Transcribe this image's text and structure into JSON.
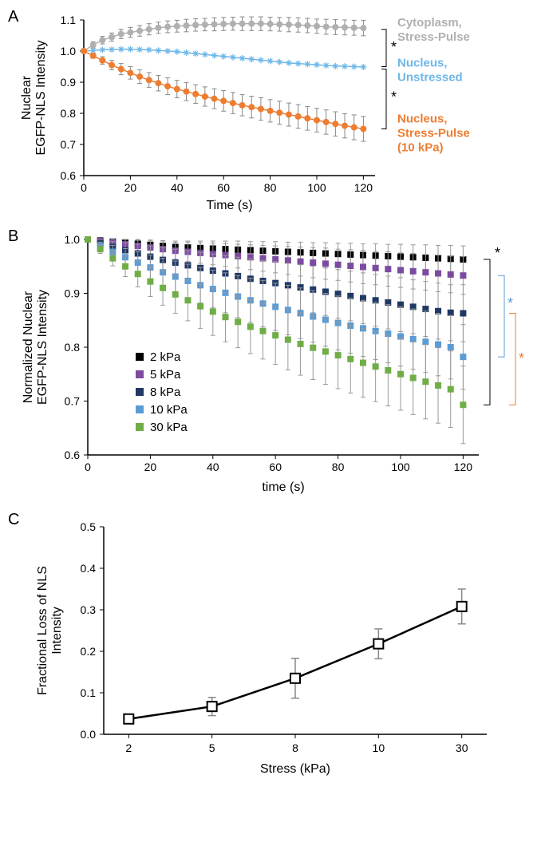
{
  "chartA": {
    "type": "scatter-line",
    "panel_label": "A",
    "xlabel": "Time (s)",
    "ylabel": "Nuclear\nEGFP-NLS Intensity",
    "xlim": [
      0,
      125
    ],
    "ylim": [
      0.6,
      1.1
    ],
    "xticks": [
      0,
      20,
      40,
      60,
      80,
      100,
      120
    ],
    "yticks": [
      0.6,
      0.7,
      0.8,
      0.9,
      1.0,
      1.1
    ],
    "label_fontsize": 16,
    "tick_fontsize": 14,
    "background_color": "#ffffff",
    "series": [
      {
        "name": "Cytoplasm, Stress-Pulse",
        "color": "#b0b0b0",
        "label_color": "#b0b0b0",
        "marker": "circle",
        "x": [
          0,
          4,
          8,
          12,
          16,
          20,
          24,
          28,
          32,
          36,
          40,
          44,
          48,
          52,
          56,
          60,
          64,
          68,
          72,
          76,
          80,
          84,
          88,
          92,
          96,
          100,
          104,
          108,
          112,
          116,
          120
        ],
        "y": [
          1.0,
          1.02,
          1.035,
          1.045,
          1.055,
          1.06,
          1.065,
          1.07,
          1.075,
          1.078,
          1.08,
          1.082,
          1.084,
          1.085,
          1.086,
          1.087,
          1.088,
          1.088,
          1.088,
          1.088,
          1.087,
          1.086,
          1.085,
          1.084,
          1.082,
          1.08,
          1.078,
          1.077,
          1.076,
          1.075,
          1.074
        ],
        "err": [
          0,
          0.01,
          0.012,
          0.013,
          0.015,
          0.016,
          0.017,
          0.018,
          0.018,
          0.019,
          0.019,
          0.02,
          0.02,
          0.02,
          0.021,
          0.021,
          0.021,
          0.022,
          0.022,
          0.022,
          0.022,
          0.022,
          0.023,
          0.023,
          0.023,
          0.023,
          0.024,
          0.024,
          0.024,
          0.024,
          0.025
        ]
      },
      {
        "name": "Nucleus, Unstressed",
        "color": "#6db7e8",
        "label_color": "#6db7e8",
        "marker": "asterisk",
        "x": [
          0,
          4,
          8,
          12,
          16,
          20,
          24,
          28,
          32,
          36,
          40,
          44,
          48,
          52,
          56,
          60,
          64,
          68,
          72,
          76,
          80,
          84,
          88,
          92,
          96,
          100,
          104,
          108,
          112,
          116,
          120
        ],
        "y": [
          1.0,
          1.002,
          1.004,
          1.005,
          1.006,
          1.006,
          1.005,
          1.004,
          1.002,
          1.0,
          0.998,
          0.995,
          0.992,
          0.989,
          0.986,
          0.983,
          0.98,
          0.977,
          0.974,
          0.971,
          0.968,
          0.965,
          0.962,
          0.96,
          0.958,
          0.956,
          0.954,
          0.952,
          0.951,
          0.95,
          0.949
        ],
        "err": [
          0,
          0,
          0,
          0,
          0,
          0,
          0,
          0,
          0,
          0,
          0,
          0,
          0,
          0,
          0,
          0,
          0,
          0,
          0,
          0,
          0,
          0,
          0,
          0,
          0,
          0,
          0,
          0,
          0,
          0,
          0
        ]
      },
      {
        "name": "Nucleus, Stress-Pulse (10 kPa)",
        "color": "#ed7d31",
        "label_color": "#ed7d31",
        "marker": "circle",
        "x": [
          0,
          4,
          8,
          12,
          16,
          20,
          24,
          28,
          32,
          36,
          40,
          44,
          48,
          52,
          56,
          60,
          64,
          68,
          72,
          76,
          80,
          84,
          88,
          92,
          96,
          100,
          104,
          108,
          112,
          116,
          120
        ],
        "y": [
          1.0,
          0.985,
          0.97,
          0.955,
          0.942,
          0.93,
          0.918,
          0.907,
          0.897,
          0.887,
          0.878,
          0.87,
          0.862,
          0.854,
          0.847,
          0.84,
          0.833,
          0.826,
          0.82,
          0.814,
          0.808,
          0.802,
          0.796,
          0.79,
          0.784,
          0.778,
          0.772,
          0.766,
          0.76,
          0.755,
          0.75
        ],
        "err": [
          0,
          0.008,
          0.012,
          0.015,
          0.018,
          0.02,
          0.022,
          0.024,
          0.025,
          0.027,
          0.028,
          0.029,
          0.03,
          0.031,
          0.032,
          0.033,
          0.034,
          0.034,
          0.035,
          0.036,
          0.036,
          0.037,
          0.037,
          0.038,
          0.038,
          0.038,
          0.039,
          0.039,
          0.039,
          0.04,
          0.04
        ]
      }
    ],
    "sig_marks": [
      "*",
      "*"
    ]
  },
  "chartB": {
    "type": "scatter-line",
    "panel_label": "B",
    "xlabel": "time (s)",
    "ylabel": "Normalized Nuclear\nEGFP-NLS Intensity",
    "xlim": [
      0,
      125
    ],
    "ylim": [
      0.6,
      1.0
    ],
    "xticks": [
      0,
      20,
      40,
      60,
      80,
      100,
      120
    ],
    "yticks": [
      0.6,
      0.7,
      0.8,
      0.9,
      1.0
    ],
    "label_fontsize": 16,
    "tick_fontsize": 14,
    "background_color": "#ffffff",
    "legend_pos": "lower-left",
    "series": [
      {
        "name": "2 kPa",
        "color": "#000000",
        "marker": "square",
        "x": [
          0,
          4,
          8,
          12,
          16,
          20,
          24,
          28,
          32,
          36,
          40,
          44,
          48,
          52,
          56,
          60,
          64,
          68,
          72,
          76,
          80,
          84,
          88,
          92,
          96,
          100,
          104,
          108,
          112,
          116,
          120
        ],
        "y": [
          1.0,
          0.998,
          0.996,
          0.994,
          0.992,
          0.99,
          0.988,
          0.986,
          0.985,
          0.984,
          0.983,
          0.982,
          0.981,
          0.98,
          0.979,
          0.978,
          0.977,
          0.976,
          0.975,
          0.974,
          0.973,
          0.972,
          0.971,
          0.97,
          0.969,
          0.968,
          0.967,
          0.966,
          0.965,
          0.964,
          0.963
        ],
        "err": [
          0,
          0.003,
          0.005,
          0.006,
          0.008,
          0.009,
          0.01,
          0.011,
          0.012,
          0.013,
          0.014,
          0.015,
          0.016,
          0.016,
          0.017,
          0.018,
          0.018,
          0.019,
          0.019,
          0.02,
          0.02,
          0.021,
          0.021,
          0.022,
          0.022,
          0.023,
          0.023,
          0.024,
          0.024,
          0.025,
          0.025
        ]
      },
      {
        "name": "5 kPa",
        "color": "#7c4ba0",
        "marker": "square",
        "x": [
          0,
          4,
          8,
          12,
          16,
          20,
          24,
          28,
          32,
          36,
          40,
          44,
          48,
          52,
          56,
          60,
          64,
          68,
          72,
          76,
          80,
          84,
          88,
          92,
          96,
          100,
          104,
          108,
          112,
          116,
          120
        ],
        "y": [
          1.0,
          0.997,
          0.994,
          0.991,
          0.988,
          0.985,
          0.982,
          0.979,
          0.977,
          0.975,
          0.973,
          0.971,
          0.969,
          0.967,
          0.965,
          0.963,
          0.961,
          0.959,
          0.957,
          0.955,
          0.953,
          0.951,
          0.949,
          0.947,
          0.945,
          0.943,
          0.941,
          0.939,
          0.937,
          0.935,
          0.933
        ],
        "err": [
          0,
          0.004,
          0.007,
          0.009,
          0.011,
          0.013,
          0.015,
          0.016,
          0.018,
          0.019,
          0.02,
          0.021,
          0.022,
          0.023,
          0.024,
          0.025,
          0.026,
          0.027,
          0.028,
          0.029,
          0.029,
          0.03,
          0.031,
          0.031,
          0.032,
          0.032,
          0.033,
          0.033,
          0.034,
          0.034,
          0.035
        ]
      },
      {
        "name": "8 kPa",
        "color": "#1f3864",
        "marker": "square",
        "x": [
          0,
          4,
          8,
          12,
          16,
          20,
          24,
          28,
          32,
          36,
          40,
          44,
          48,
          52,
          56,
          60,
          64,
          68,
          72,
          76,
          80,
          84,
          88,
          92,
          96,
          100,
          104,
          108,
          112,
          116,
          120
        ],
        "y": [
          1.0,
          0.993,
          0.986,
          0.98,
          0.974,
          0.968,
          0.962,
          0.957,
          0.952,
          0.947,
          0.942,
          0.937,
          0.932,
          0.927,
          0.923,
          0.919,
          0.915,
          0.911,
          0.907,
          0.903,
          0.899,
          0.895,
          0.891,
          0.887,
          0.883,
          0.879,
          0.875,
          0.871,
          0.867,
          0.864,
          0.863
        ],
        "err": [
          0,
          0.006,
          0.01,
          0.014,
          0.017,
          0.02,
          0.023,
          0.025,
          0.027,
          0.029,
          0.031,
          0.033,
          0.035,
          0.037,
          0.038,
          0.04,
          0.041,
          0.042,
          0.043,
          0.044,
          0.045,
          0.046,
          0.047,
          0.048,
          0.049,
          0.05,
          0.05,
          0.051,
          0.052,
          0.052,
          0.053
        ]
      },
      {
        "name": "10 kPa",
        "color": "#5b9bd5",
        "marker": "square",
        "x": [
          0,
          4,
          8,
          12,
          16,
          20,
          24,
          28,
          32,
          36,
          40,
          44,
          48,
          52,
          56,
          60,
          64,
          68,
          72,
          76,
          80,
          84,
          88,
          92,
          96,
          100,
          104,
          108,
          112,
          116,
          120
        ],
        "y": [
          1.0,
          0.988,
          0.977,
          0.967,
          0.957,
          0.948,
          0.939,
          0.931,
          0.923,
          0.915,
          0.908,
          0.901,
          0.894,
          0.887,
          0.881,
          0.875,
          0.869,
          0.863,
          0.857,
          0.851,
          0.845,
          0.84,
          0.835,
          0.83,
          0.825,
          0.82,
          0.815,
          0.81,
          0.805,
          0.8,
          0.782
        ],
        "err": [
          0,
          0.007,
          0.012,
          0.016,
          0.02,
          0.023,
          0.026,
          0.029,
          0.031,
          0.033,
          0.035,
          0.037,
          0.039,
          0.041,
          0.043,
          0.044,
          0.046,
          0.047,
          0.048,
          0.049,
          0.05,
          0.051,
          0.052,
          0.053,
          0.054,
          0.055,
          0.056,
          0.057,
          0.058,
          0.059,
          0.06
        ]
      },
      {
        "name": "30 kPa",
        "color": "#70ad47",
        "marker": "square",
        "x": [
          0,
          4,
          8,
          12,
          16,
          20,
          24,
          28,
          32,
          36,
          40,
          44,
          48,
          52,
          56,
          60,
          64,
          68,
          72,
          76,
          80,
          84,
          88,
          92,
          96,
          100,
          104,
          108,
          112,
          116,
          120
        ],
        "y": [
          1.0,
          0.982,
          0.965,
          0.95,
          0.936,
          0.922,
          0.91,
          0.898,
          0.887,
          0.876,
          0.866,
          0.856,
          0.847,
          0.838,
          0.83,
          0.822,
          0.814,
          0.806,
          0.799,
          0.792,
          0.785,
          0.778,
          0.771,
          0.764,
          0.757,
          0.75,
          0.743,
          0.736,
          0.729,
          0.722,
          0.693
        ],
        "err": [
          0,
          0.008,
          0.014,
          0.019,
          0.024,
          0.028,
          0.032,
          0.035,
          0.038,
          0.041,
          0.044,
          0.046,
          0.048,
          0.05,
          0.052,
          0.054,
          0.056,
          0.058,
          0.059,
          0.061,
          0.062,
          0.063,
          0.064,
          0.065,
          0.066,
          0.067,
          0.068,
          0.069,
          0.07,
          0.071,
          0.072
        ]
      }
    ],
    "sig_marks": [
      {
        "color": "#000000",
        "label": "*"
      },
      {
        "color": "#5b9bd5",
        "label": "*"
      },
      {
        "color": "#ed7d31",
        "label": "*"
      }
    ]
  },
  "chartC": {
    "type": "line",
    "panel_label": "C",
    "xlabel": "Stress (kPa)",
    "ylabel": "Fractional Loss of NLS\nIntensity",
    "categories": [
      "2",
      "5",
      "8",
      "10",
      "30"
    ],
    "x_positions": [
      0,
      1,
      2,
      3,
      4
    ],
    "ylim": [
      0,
      0.5
    ],
    "yticks": [
      0,
      0.1,
      0.2,
      0.3,
      0.4,
      0.5
    ],
    "label_fontsize": 16,
    "tick_fontsize": 14,
    "background_color": "#ffffff",
    "line_color": "#000000",
    "marker_fill": "#ffffff",
    "marker_stroke": "#000000",
    "marker": "square-open",
    "y": [
      0.037,
      0.067,
      0.135,
      0.218,
      0.308
    ],
    "err": [
      0.01,
      0.022,
      0.048,
      0.036,
      0.042
    ]
  }
}
